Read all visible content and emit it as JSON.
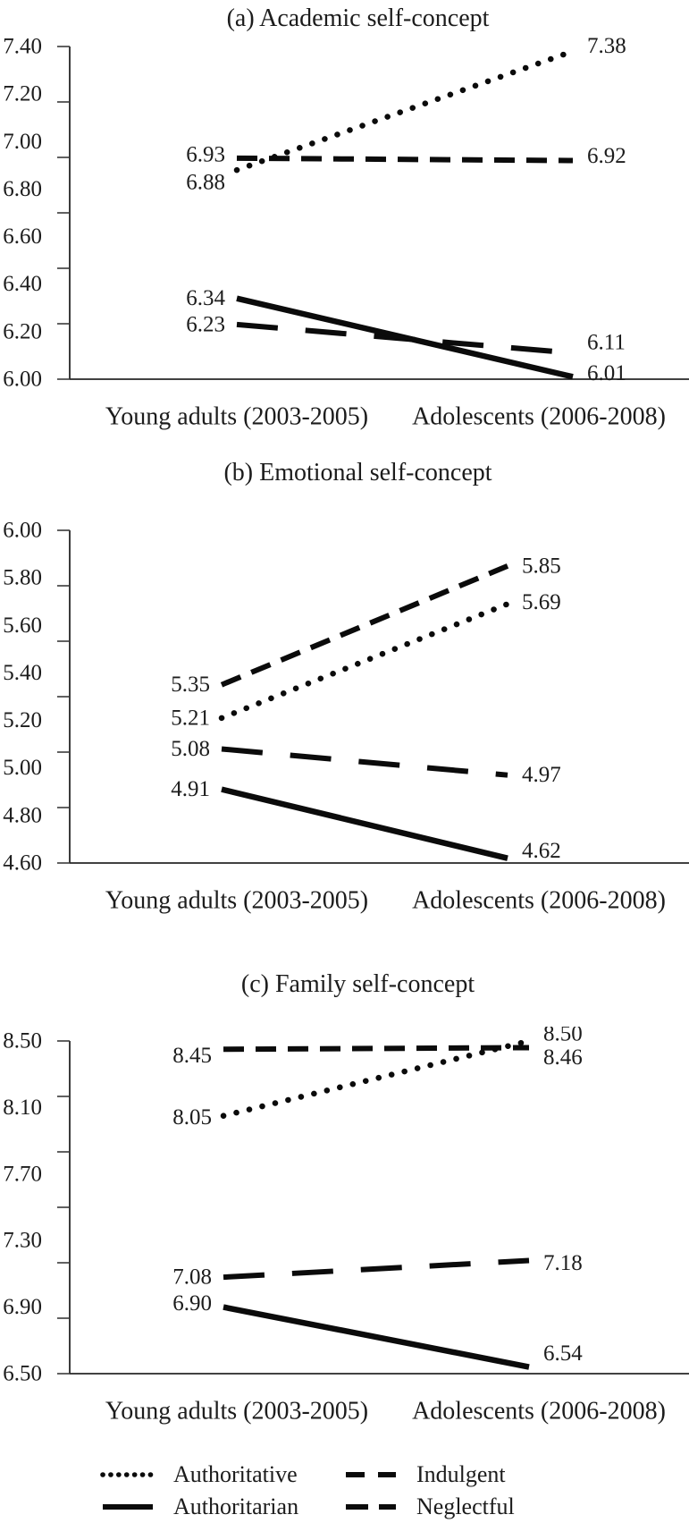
{
  "page": {
    "background": "#ffffff",
    "text_color": "#1c1c1c",
    "line_color": "#0b0b0b"
  },
  "axis": {
    "x_categories": [
      "Young adults (2003-2005)",
      "Adolescents (2006-2008)"
    ]
  },
  "legend": {
    "position": "bottom",
    "items": [
      {
        "label": "Authoritative",
        "style": "dotted"
      },
      {
        "label": "Indulgent",
        "style": "dashed"
      },
      {
        "label": "Authoritarian",
        "style": "solid"
      },
      {
        "label": "Neglectful",
        "style": "longdash"
      }
    ]
  },
  "chart_data": [
    {
      "type": "line",
      "title": "(a) Academic self-concept",
      "categories": [
        "Young adults (2003-2005)",
        "Adolescents (2006-2008)"
      ],
      "ylim": [
        6.0,
        7.4
      ],
      "ytick_labels": [
        "7.40",
        "7.20",
        "7.00",
        "6.80",
        "6.60",
        "6.40",
        "6.20",
        "6.00"
      ],
      "grid": false,
      "series": [
        {
          "name": "Authoritative",
          "line_style": "dotted",
          "values": [
            6.88,
            7.38
          ],
          "point_labels": [
            "6.88",
            "7.38"
          ],
          "label_dy": [
            14,
            -6
          ]
        },
        {
          "name": "Indulgent",
          "line_style": "dashed",
          "values": [
            6.93,
            6.92
          ],
          "point_labels": [
            "6.93",
            "6.92"
          ],
          "label_dy": [
            -4,
            -5
          ]
        },
        {
          "name": "Authoritarian",
          "line_style": "solid",
          "values": [
            6.34,
            6.01
          ],
          "point_labels": [
            "6.34",
            "6.01"
          ],
          "label_dy": [
            0,
            -4
          ]
        },
        {
          "name": "Neglectful",
          "line_style": "longdash",
          "values": [
            6.23,
            6.11
          ],
          "point_labels": [
            "6.23",
            "6.11"
          ],
          "label_dy": [
            0,
            -12
          ]
        }
      ]
    },
    {
      "type": "line",
      "title": "(b) Emotional self-concept",
      "categories": [
        "Young adults (2003-2005)",
        "Adolescents (2006-2008)"
      ],
      "ylim": [
        4.6,
        6.0
      ],
      "ytick_labels": [
        "6.00",
        "5.80",
        "5.60",
        "5.40",
        "5.20",
        "5.00",
        "4.80",
        "4.60"
      ],
      "grid": false,
      "series": [
        {
          "name": "Authoritative",
          "line_style": "dotted",
          "values": [
            5.21,
            5.69
          ],
          "point_labels": [
            "5.21",
            "5.69"
          ],
          "label_dy": [
            0,
            -2
          ]
        },
        {
          "name": "Indulgent",
          "line_style": "dashed",
          "values": [
            5.35,
            5.85
          ],
          "point_labels": [
            "5.35",
            "5.85"
          ],
          "label_dy": [
            0,
            0
          ]
        },
        {
          "name": "Authoritarian",
          "line_style": "solid",
          "values": [
            4.91,
            4.62
          ],
          "point_labels": [
            "4.91",
            "4.62"
          ],
          "label_dy": [
            0,
            -8
          ]
        },
        {
          "name": "Neglectful",
          "line_style": "longdash",
          "values": [
            5.08,
            4.97
          ],
          "point_labels": [
            "5.08",
            "4.97"
          ],
          "label_dy": [
            0,
            0
          ]
        }
      ]
    },
    {
      "type": "line",
      "title": "(c) Family self-concept",
      "categories": [
        "Young adults (2003-2005)",
        "Adolescents (2006-2008)"
      ],
      "ylim": [
        6.5,
        8.5
      ],
      "ytick_labels": [
        "8.50",
        "8.10",
        "7.70",
        "7.30",
        "6.90",
        "6.50"
      ],
      "grid": false,
      "series": [
        {
          "name": "Authoritative",
          "line_style": "dotted",
          "values": [
            8.05,
            8.5
          ],
          "point_labels": [
            "8.05",
            "8.50"
          ],
          "label_dy": [
            2,
            -8
          ]
        },
        {
          "name": "Indulgent",
          "line_style": "dashed",
          "values": [
            8.45,
            8.46
          ],
          "point_labels": [
            "8.45",
            "8.46"
          ],
          "label_dy": [
            7,
            11
          ]
        },
        {
          "name": "Authoritarian",
          "line_style": "solid",
          "values": [
            6.9,
            6.54
          ],
          "point_labels": [
            "6.90",
            "6.54"
          ],
          "label_dy": [
            -4,
            -15
          ]
        },
        {
          "name": "Neglectful",
          "line_style": "longdash",
          "values": [
            7.08,
            7.18
          ],
          "point_labels": [
            "7.08",
            "7.18"
          ],
          "label_dy": [
            0,
            3
          ]
        }
      ]
    }
  ]
}
